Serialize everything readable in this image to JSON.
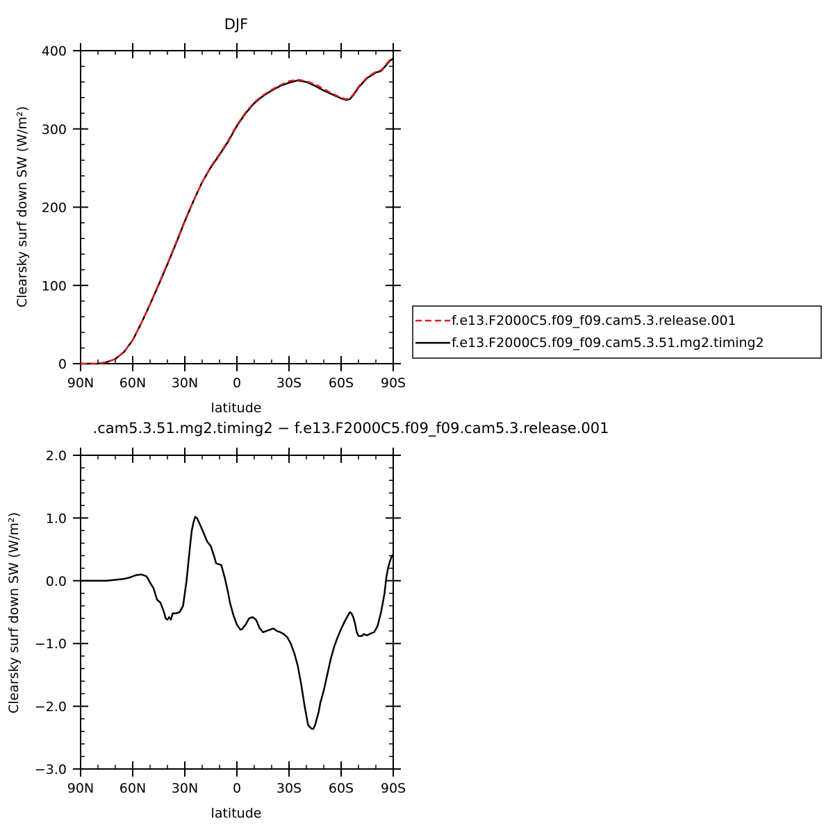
{
  "chart_data": [
    {
      "type": "line",
      "title": "DJF",
      "xlabel": "latitude",
      "ylabel": "Clearsky surf down SW (W/m²)",
      "xlim": [
        -90,
        90
      ],
      "ylim": [
        0,
        400
      ],
      "x_ticks": [
        {
          "value": -90,
          "label": "90N"
        },
        {
          "value": -60,
          "label": "60N"
        },
        {
          "value": -30,
          "label": "30N"
        },
        {
          "value": 0,
          "label": "0"
        },
        {
          "value": 30,
          "label": "30S"
        },
        {
          "value": 60,
          "label": "60S"
        },
        {
          "value": 90,
          "label": "90S"
        }
      ],
      "y_ticks": [
        {
          "value": 0,
          "label": "0"
        },
        {
          "value": 100,
          "label": "100"
        },
        {
          "value": 200,
          "label": "200"
        },
        {
          "value": 300,
          "label": "300"
        },
        {
          "value": 400,
          "label": "400"
        }
      ],
      "legend": "outside-right",
      "series": [
        {
          "name": "f.e13.F2000C5.f09_f09.cam5.3.release.001",
          "color": "#e41a1c",
          "dash": "dashed",
          "x": [
            -90,
            -80,
            -75,
            -70,
            -65,
            -60,
            -55,
            -50,
            -45,
            -40,
            -35,
            -30,
            -25,
            -20,
            -15,
            -10,
            -5,
            0,
            5,
            10,
            15,
            20,
            25,
            30,
            35,
            40,
            45,
            50,
            55,
            60,
            63,
            65,
            67,
            70,
            75,
            80,
            83,
            85,
            88,
            90
          ],
          "y": [
            0,
            0,
            2,
            6,
            15,
            30,
            52,
            76,
            102,
            128,
            155,
            183,
            208,
            232,
            252,
            268,
            285,
            305,
            321,
            334,
            343,
            350,
            356,
            361,
            363,
            361,
            357,
            351,
            345,
            340,
            338,
            339,
            344,
            354,
            366,
            373,
            375,
            380,
            388,
            390
          ]
        },
        {
          "name": "f.e13.F2000C5.f09_f09.cam5.3.51.mg2.timing2",
          "color": "#000000",
          "dash": "solid",
          "x": [
            -90,
            -80,
            -75,
            -70,
            -65,
            -60,
            -55,
            -50,
            -45,
            -40,
            -35,
            -30,
            -25,
            -20,
            -15,
            -10,
            -5,
            0,
            5,
            10,
            15,
            20,
            25,
            30,
            35,
            40,
            45,
            50,
            55,
            60,
            63,
            65,
            67,
            70,
            75,
            80,
            83,
            85,
            88,
            90
          ],
          "y": [
            0,
            0,
            2,
            6,
            15,
            30,
            52,
            76,
            101,
            127,
            154,
            182,
            208,
            232,
            251,
            267,
            284,
            304,
            320,
            333,
            342,
            349,
            355,
            359,
            362,
            360,
            355,
            349,
            344,
            339,
            337,
            338,
            343,
            353,
            365,
            372,
            374,
            379,
            387,
            390
          ]
        }
      ]
    },
    {
      "type": "line",
      "title": ".cam5.3.51.mg2.timing2 − f.e13.F2000C5.f09_f09.cam5.3.release.001",
      "xlabel": "latitude",
      "ylabel": "Clearsky surf down SW (W/m²)",
      "xlim": [
        -90,
        90
      ],
      "ylim": [
        -3.0,
        2.0
      ],
      "x_ticks": [
        {
          "value": -90,
          "label": "90N"
        },
        {
          "value": -60,
          "label": "60N"
        },
        {
          "value": -30,
          "label": "30N"
        },
        {
          "value": 0,
          "label": "0"
        },
        {
          "value": 30,
          "label": "30S"
        },
        {
          "value": 60,
          "label": "60S"
        },
        {
          "value": 90,
          "label": "90S"
        }
      ],
      "y_ticks": [
        {
          "value": -3.0,
          "label": "−3.0"
        },
        {
          "value": -2.0,
          "label": "−2.0"
        },
        {
          "value": -1.0,
          "label": "−1.0"
        },
        {
          "value": 0.0,
          "label": "0.0"
        },
        {
          "value": 1.0,
          "label": "1.0"
        },
        {
          "value": 2.0,
          "label": "2.0"
        }
      ],
      "series": [
        {
          "name": "",
          "color": "#000000",
          "dash": "solid",
          "x": [
            -90,
            -75,
            -65,
            -62,
            -58,
            -55,
            -52,
            -50,
            -48,
            -46,
            -44,
            -42,
            -41,
            -40,
            -39,
            -38,
            -37,
            -35,
            -33,
            -31,
            -29,
            -27,
            -26,
            -25,
            -24,
            -23,
            -21,
            -19,
            -17,
            -15,
            -13,
            -12,
            -11,
            -9,
            -7,
            -5,
            -4,
            -2,
            0,
            2,
            3,
            5,
            7,
            9,
            11,
            13,
            15,
            17,
            19,
            21,
            23,
            25,
            27,
            29,
            31,
            33,
            35,
            37,
            39,
            41,
            43,
            44,
            45,
            46,
            47,
            48,
            50,
            52,
            54,
            56,
            58,
            60,
            62,
            64,
            65,
            66,
            67,
            68,
            69,
            70,
            72,
            73,
            75,
            77,
            79,
            81,
            83,
            85,
            86,
            87,
            88,
            89,
            90
          ],
          "y": [
            0.0,
            0.0,
            0.03,
            0.05,
            0.09,
            0.1,
            0.07,
            -0.03,
            -0.12,
            -0.3,
            -0.35,
            -0.5,
            -0.6,
            -0.62,
            -0.58,
            -0.62,
            -0.52,
            -0.52,
            -0.5,
            -0.4,
            0.0,
            0.55,
            0.8,
            0.93,
            1.02,
            1.0,
            0.88,
            0.75,
            0.62,
            0.55,
            0.38,
            0.28,
            0.27,
            0.25,
            0.05,
            -0.2,
            -0.35,
            -0.55,
            -0.7,
            -0.78,
            -0.77,
            -0.7,
            -0.6,
            -0.58,
            -0.62,
            -0.75,
            -0.82,
            -0.8,
            -0.78,
            -0.76,
            -0.8,
            -0.82,
            -0.85,
            -0.9,
            -1.0,
            -1.15,
            -1.35,
            -1.65,
            -2.0,
            -2.3,
            -2.36,
            -2.36,
            -2.3,
            -2.2,
            -2.1,
            -1.95,
            -1.75,
            -1.5,
            -1.25,
            -1.05,
            -0.9,
            -0.77,
            -0.65,
            -0.55,
            -0.5,
            -0.52,
            -0.58,
            -0.68,
            -0.82,
            -0.88,
            -0.88,
            -0.85,
            -0.87,
            -0.84,
            -0.82,
            -0.72,
            -0.5,
            -0.2,
            0.05,
            0.2,
            0.3,
            0.38,
            0.42
          ]
        }
      ]
    }
  ]
}
